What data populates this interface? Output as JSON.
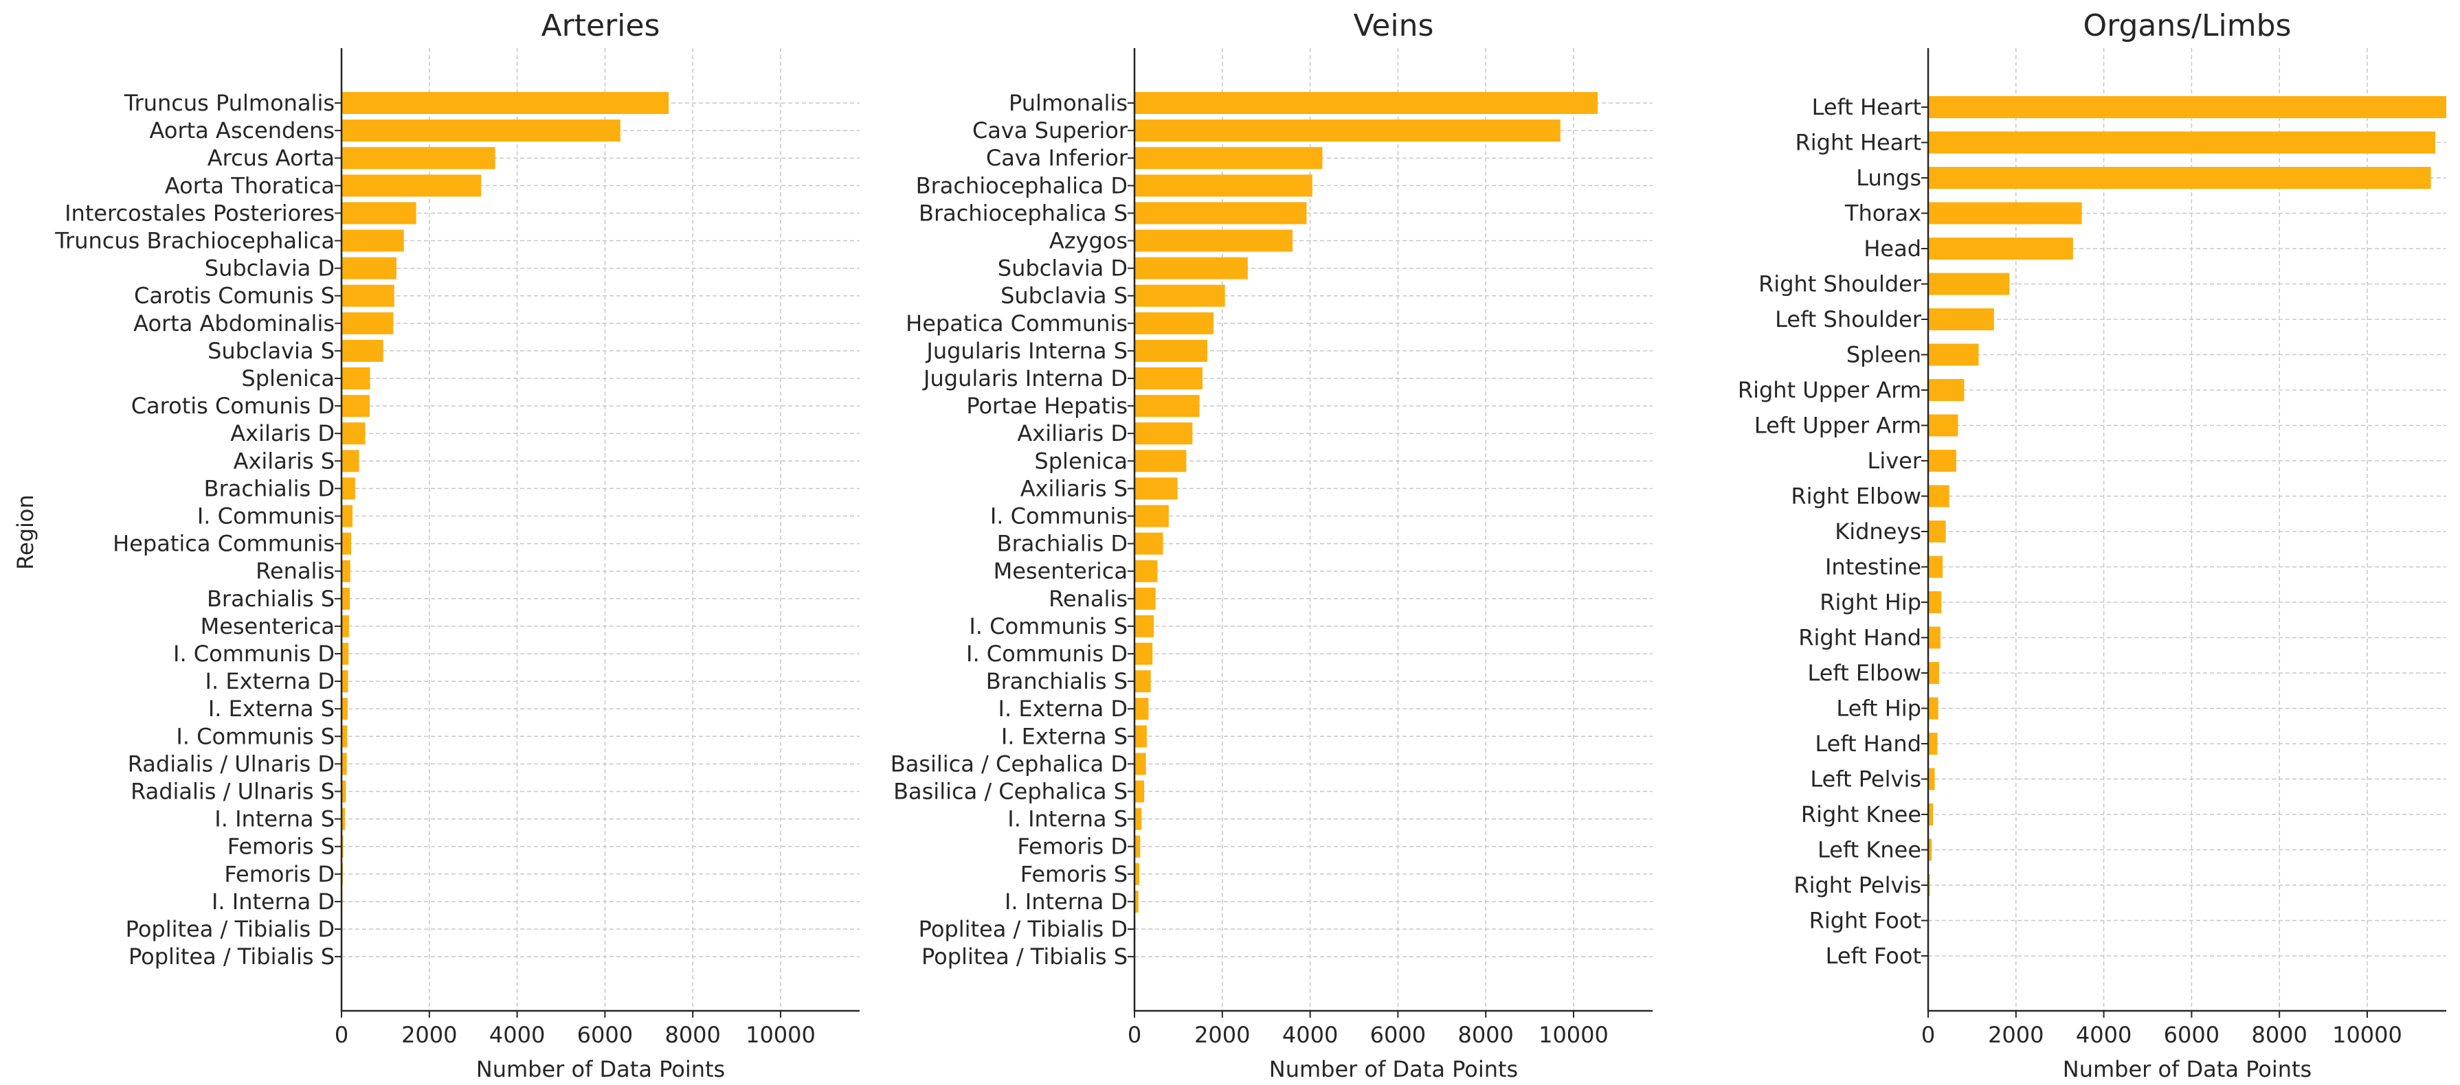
{
  "ylabel": "Region",
  "chart_data": [
    {
      "type": "bar",
      "orientation": "horizontal",
      "title": "Arteries",
      "xlabel": "Number of Data Points",
      "ylabel": "Region",
      "xlim": [
        0,
        11800
      ],
      "xticks": [
        0,
        2000,
        4000,
        6000,
        8000,
        10000
      ],
      "grid": true,
      "bar_color": "#FDAF0E",
      "categories": [
        "Truncus Pulmonalis",
        "Aorta Ascendens",
        "Arcus Aorta",
        "Aorta Thoratica",
        "Intercostales Posteriores",
        "Truncus Brachiocephalica",
        "Subclavia D",
        "Carotis Comunis S",
        "Aorta Abdominalis",
        "Subclavia S",
        "Splenica",
        "Carotis Comunis D",
        "Axilaris D",
        "Axilaris S",
        "Brachialis D",
        "I. Communis",
        "Hepatica Communis",
        "Renalis",
        "Brachialis S",
        "Mesenterica",
        "I. Communis D",
        "I. Externa D",
        "I. Externa S",
        "I. Communis S",
        "Radialis / Ulnaris D",
        "Radialis / Ulnaris S",
        "I. Interna S",
        "Femoris S",
        "Femoris D",
        "I. Interna D",
        "Poplitea / Tibialis D",
        "Poplitea / Tibialis S"
      ],
      "values": [
        7450,
        6350,
        3500,
        3180,
        1700,
        1420,
        1250,
        1200,
        1180,
        950,
        650,
        640,
        540,
        400,
        310,
        250,
        220,
        200,
        190,
        170,
        160,
        150,
        140,
        130,
        120,
        100,
        80,
        40,
        30,
        20,
        10,
        5
      ]
    },
    {
      "type": "bar",
      "orientation": "horizontal",
      "title": "Veins",
      "xlabel": "Number of Data Points",
      "xlim": [
        0,
        11800
      ],
      "xticks": [
        0,
        2000,
        4000,
        6000,
        8000,
        10000
      ],
      "grid": true,
      "bar_color": "#FDAF0E",
      "categories": [
        "Pulmonalis",
        "Cava Superior",
        "Cava Inferior",
        "Brachiocephalica D",
        "Brachiocephalica S",
        "Azygos",
        "Subclavia D",
        "Subclavia S",
        "Hepatica Communis",
        "Jugularis Interna S",
        "Jugularis Interna D",
        "Portae Hepatis",
        "Axiliaris D",
        "Splenica",
        "Axiliaris S",
        "I. Communis",
        "Brachialis D",
        "Mesenterica",
        "Renalis",
        "I. Communis S",
        "I. Communis D",
        "Branchialis S",
        "I. Externa D",
        "I. Externa S",
        "Basilica / Cephalica D",
        "Basilica / Cephalica S",
        "I. Interna S",
        "Femoris D",
        "Femoris S",
        "I. Interna D",
        "Poplitea / Tibialis D",
        "Poplitea / Tibialis S"
      ],
      "values": [
        10550,
        9700,
        4280,
        4050,
        3920,
        3600,
        2580,
        2060,
        1800,
        1660,
        1550,
        1480,
        1320,
        1180,
        980,
        780,
        650,
        520,
        480,
        440,
        410,
        370,
        320,
        280,
        260,
        220,
        160,
        130,
        110,
        90,
        20,
        10
      ]
    },
    {
      "type": "bar",
      "orientation": "horizontal",
      "title": "Organs/Limbs",
      "xlabel": "Number of Data Points",
      "xlim": [
        0,
        11800
      ],
      "xticks": [
        0,
        2000,
        4000,
        6000,
        8000,
        10000
      ],
      "grid": true,
      "bar_color": "#FDAF0E",
      "categories": [
        "Left Heart",
        "Right Heart",
        "Lungs",
        "Thorax",
        "Head",
        "Right Shoulder",
        "Left Shoulder",
        "Spleen",
        "Right Upper Arm",
        "Left Upper Arm",
        "Liver",
        "Right Elbow",
        "Kidneys",
        "Intestine",
        "Right Hip",
        "Right Hand",
        "Left Elbow",
        "Left Hip",
        "Left Hand",
        "Left Pelvis",
        "Right Knee",
        "Left Knee",
        "Right Pelvis",
        "Right Foot",
        "Left Foot"
      ],
      "values": [
        11800,
        11550,
        11450,
        3500,
        3300,
        1850,
        1500,
        1150,
        820,
        680,
        640,
        480,
        400,
        330,
        300,
        280,
        250,
        230,
        210,
        150,
        110,
        80,
        40,
        15,
        10
      ]
    }
  ]
}
